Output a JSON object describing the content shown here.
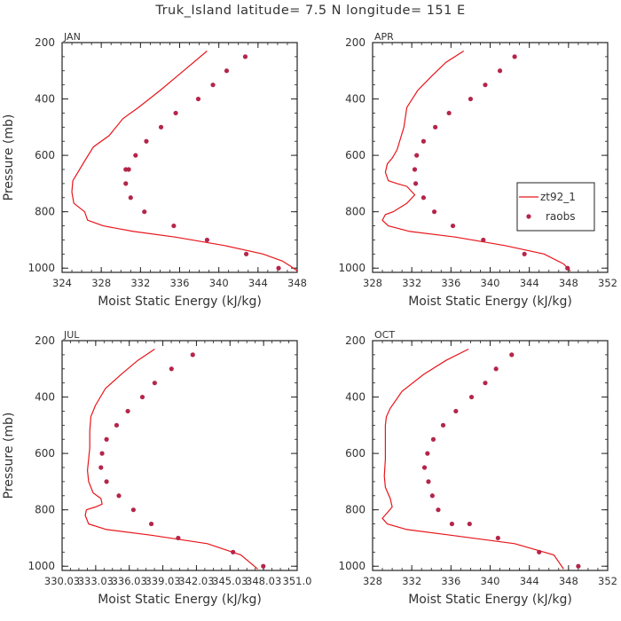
{
  "title": "Truk_Island  latitude= 7.5 N longitude= 151 E",
  "colors": {
    "model": "#e8151a",
    "obs": "#b5254a",
    "axis": "#222222",
    "text": "#333333"
  },
  "chart_data": [
    {
      "type": "line",
      "panel": "JAN",
      "xlabel": "Moist Static Energy (kJ/kg)",
      "ylabel": "Pressure (mb)",
      "xlim": [
        324,
        348
      ],
      "xticks": [
        "324",
        "328",
        "332",
        "336",
        "340",
        "344",
        "348"
      ],
      "xtick_values": [
        324,
        328,
        332,
        336,
        340,
        344,
        348
      ],
      "ylim": [
        1015,
        200
      ],
      "yticks": [
        200,
        400,
        600,
        800,
        1000
      ],
      "series": [
        {
          "name": "zt92_1",
          "style": "line",
          "x": [
            338.8,
            336.4,
            334.0,
            331.8,
            330.2,
            328.8,
            327.2,
            326.3,
            325.7,
            325.1,
            325.0,
            325.2,
            326.3,
            326.6,
            328.2,
            331.3,
            335.6,
            340.6,
            344.5,
            346.5,
            347.4,
            348.0
          ],
          "y": [
            230,
            300,
            370,
            430,
            470,
            530,
            570,
            620,
            655,
            690,
            730,
            770,
            800,
            830,
            850,
            870,
            890,
            920,
            950,
            975,
            995,
            1010
          ]
        },
        {
          "name": "raobs",
          "style": "points",
          "x": [
            342.7,
            340.8,
            339.4,
            337.9,
            335.6,
            334.1,
            332.6,
            331.5,
            330.8,
            330.5,
            330.5,
            331.0,
            332.4,
            335.4,
            338.8,
            342.8,
            346.1
          ],
          "y": [
            250,
            300,
            350,
            400,
            450,
            500,
            550,
            600,
            650,
            650,
            700,
            750,
            800,
            850,
            900,
            950,
            1000
          ]
        }
      ]
    },
    {
      "type": "line",
      "panel": "APR",
      "xlabel": "Moist Static Energy (kJ/kg)",
      "ylabel": "",
      "xlim": [
        328,
        352
      ],
      "xticks": [
        "328",
        "332",
        "336",
        "340",
        "344",
        "348",
        "352"
      ],
      "xtick_values": [
        328,
        332,
        336,
        340,
        344,
        348,
        352
      ],
      "ylim": [
        1015,
        200
      ],
      "yticks": [
        200,
        400,
        600,
        800,
        1000
      ],
      "legend": [
        "zt92_1",
        "raobs"
      ],
      "series": [
        {
          "name": "zt92_1",
          "style": "line",
          "x": [
            337.3,
            335.5,
            334.0,
            332.6,
            331.5,
            331.2,
            330.5,
            330.0,
            329.5,
            329.3,
            329.6,
            330.5,
            331.5,
            332.3,
            331.5,
            330.1,
            329.3,
            329.0,
            329.6,
            331.8,
            336.5,
            341.5,
            345.5,
            347.5,
            348.2
          ],
          "y": [
            230,
            270,
            320,
            370,
            430,
            500,
            580,
            610,
            630,
            660,
            690,
            700,
            710,
            740,
            770,
            800,
            810,
            830,
            850,
            870,
            890,
            920,
            950,
            985,
            1010
          ]
        },
        {
          "name": "raobs",
          "style": "points",
          "x": [
            342.5,
            341.0,
            339.5,
            338.0,
            335.8,
            334.4,
            333.2,
            332.5,
            332.3,
            332.4,
            333.2,
            334.3,
            336.2,
            339.3,
            343.5,
            347.9
          ],
          "y": [
            250,
            300,
            350,
            400,
            450,
            500,
            550,
            600,
            650,
            700,
            750,
            800,
            850,
            900,
            950,
            1000
          ]
        }
      ]
    },
    {
      "type": "line",
      "panel": "JUL",
      "xlabel": "Moist Static Energy (kJ/kg)",
      "ylabel": "Pressure (mb)",
      "xlim": [
        330.03,
        351.03
      ],
      "xticks": [
        "330.03",
        "333.03",
        "336.03",
        "339.03",
        "342.03",
        "345.03",
        "348.03",
        "351.0"
      ],
      "xtick_values": [
        330.03,
        333.03,
        336.03,
        339.03,
        342.03,
        345.03,
        348.03,
        351.03
      ],
      "ylim": [
        1015,
        200
      ],
      "yticks": [
        200,
        400,
        600,
        800,
        1000
      ],
      "series": [
        {
          "name": "zt92_1",
          "style": "line",
          "x": [
            338.3,
            336.8,
            335.3,
            333.9,
            333.0,
            332.6,
            332.5,
            332.5,
            332.4,
            332.3,
            332.4,
            332.8,
            333.5,
            333.6,
            333.0,
            332.2,
            332.1,
            332.4,
            334.0,
            338.0,
            343.0,
            346.0,
            347.5
          ],
          "y": [
            230,
            270,
            320,
            370,
            430,
            470,
            520,
            580,
            620,
            660,
            700,
            740,
            760,
            780,
            790,
            800,
            820,
            850,
            870,
            890,
            920,
            960,
            1010
          ]
        },
        {
          "name": "raobs",
          "style": "points",
          "x": [
            341.7,
            339.8,
            338.3,
            337.2,
            335.9,
            334.9,
            334.0,
            333.6,
            333.5,
            334.0,
            335.1,
            336.4,
            338.0,
            340.4,
            345.3,
            348.0
          ],
          "y": [
            250,
            300,
            350,
            400,
            450,
            500,
            550,
            600,
            650,
            700,
            750,
            800,
            850,
            900,
            950,
            1000
          ]
        }
      ]
    },
    {
      "type": "line",
      "panel": "OCT",
      "xlabel": "Moist Static Energy (kJ/kg)",
      "ylabel": "",
      "xlim": [
        328,
        352
      ],
      "xticks": [
        "328",
        "332",
        "336",
        "340",
        "344",
        "348",
        "352"
      ],
      "xtick_values": [
        328,
        332,
        336,
        340,
        344,
        348,
        352
      ],
      "ylim": [
        1015,
        200
      ],
      "yticks": [
        200,
        400,
        600,
        800,
        1000
      ],
      "series": [
        {
          "name": "zt92_1",
          "style": "line",
          "x": [
            337.8,
            335.5,
            333.2,
            331.0,
            329.8,
            329.4,
            329.3,
            329.3,
            329.3,
            329.2,
            329.3,
            329.8,
            330.0,
            329.5,
            329.0,
            329.5,
            331.5,
            336.0,
            342.5,
            346.5,
            347.5
          ],
          "y": [
            230,
            270,
            320,
            380,
            440,
            470,
            500,
            550,
            620,
            680,
            720,
            760,
            790,
            810,
            830,
            850,
            870,
            890,
            920,
            960,
            1010
          ]
        },
        {
          "name": "raobs",
          "style": "points",
          "x": [
            342.2,
            340.6,
            339.5,
            338.1,
            336.5,
            335.2,
            334.2,
            333.6,
            333.3,
            333.7,
            334.1,
            334.7,
            336.1,
            337.9,
            340.8,
            345.0,
            349.0
          ],
          "y": [
            250,
            300,
            350,
            400,
            450,
            500,
            550,
            600,
            650,
            700,
            750,
            800,
            850,
            850,
            900,
            950,
            1000
          ]
        }
      ]
    }
  ]
}
